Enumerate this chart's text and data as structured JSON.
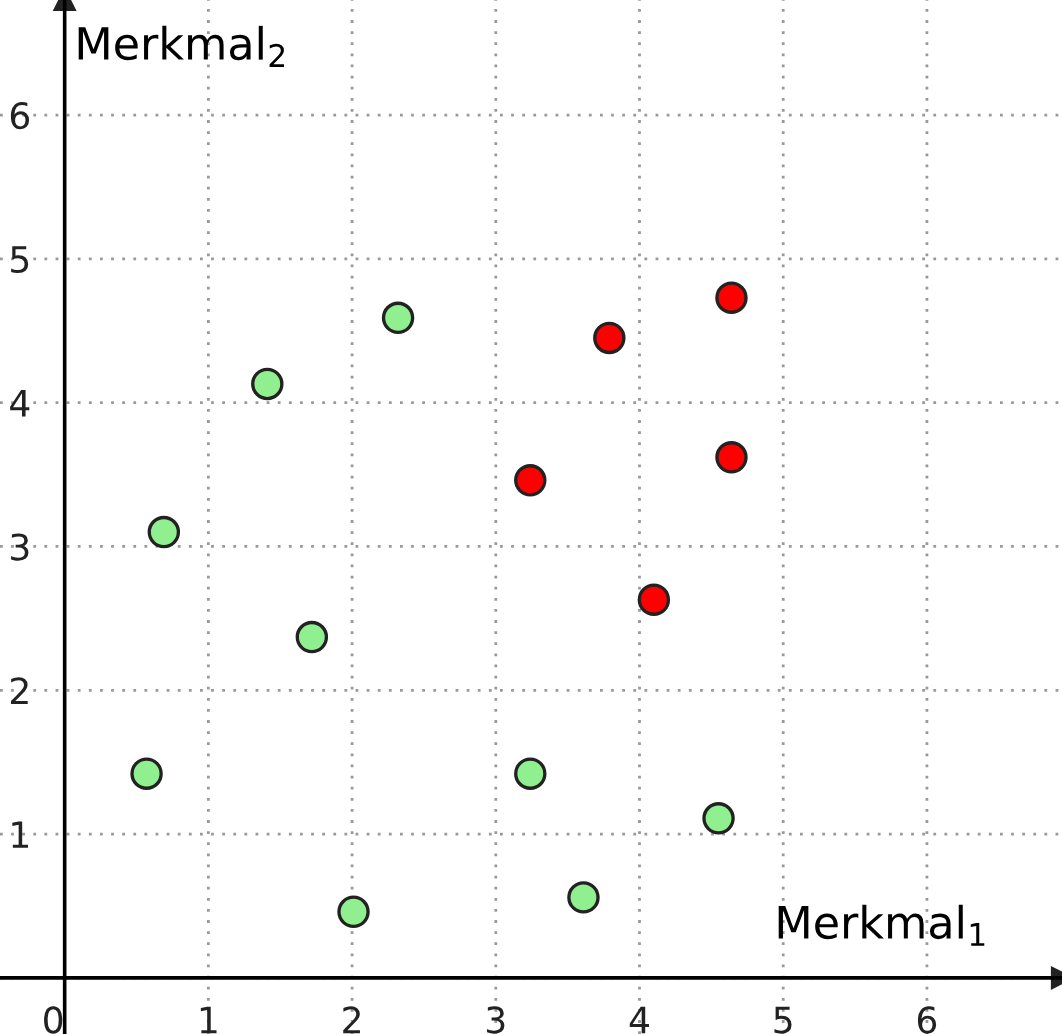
{
  "chart_data": {
    "type": "scatter",
    "xlabel": "Merkmal$_{1}$",
    "ylabel": "Merkmal$_{2}$",
    "xlim": [
      -0.45,
      6.94
    ],
    "ylim": [
      -0.39,
      6.8
    ],
    "xticks": [
      0,
      1,
      2,
      3,
      4,
      5,
      6
    ],
    "yticks": [
      {
        "value": 0,
        "label": null
      },
      1,
      2,
      3,
      4,
      5,
      6
    ],
    "grid": true,
    "marker": "circle",
    "series": [
      {
        "color": "#90f090",
        "x": [
          2.32,
          1.41,
          0.69,
          1.72,
          0.57,
          3.24,
          4.55,
          3.61,
          2.01
        ],
        "values": [
          4.59,
          4.13,
          3.1,
          2.37,
          1.42,
          1.42,
          1.11,
          0.56,
          0.46
        ]
      },
      {
        "color": "#ff0000",
        "x": [
          3.79,
          4.64,
          3.24,
          4.64,
          4.1
        ],
        "values": [
          4.45,
          4.73,
          3.46,
          3.62,
          2.63
        ]
      }
    ]
  }
}
